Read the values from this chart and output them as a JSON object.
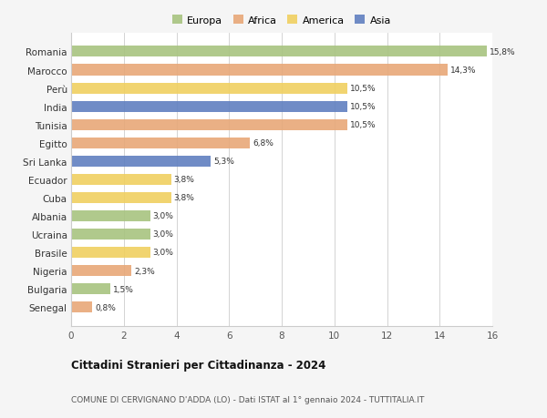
{
  "categories": [
    "Romania",
    "Marocco",
    "Perù",
    "India",
    "Tunisia",
    "Egitto",
    "Sri Lanka",
    "Ecuador",
    "Cuba",
    "Albania",
    "Ucraina",
    "Brasile",
    "Nigeria",
    "Bulgaria",
    "Senegal"
  ],
  "values": [
    15.8,
    14.3,
    10.5,
    10.5,
    10.5,
    6.8,
    5.3,
    3.8,
    3.8,
    3.0,
    3.0,
    3.0,
    2.3,
    1.5,
    0.8
  ],
  "labels": [
    "15,8%",
    "14,3%",
    "10,5%",
    "10,5%",
    "10,5%",
    "6,8%",
    "5,3%",
    "3,8%",
    "3,8%",
    "3,0%",
    "3,0%",
    "3,0%",
    "2,3%",
    "1,5%",
    "0,8%"
  ],
  "continents": [
    "Europa",
    "Africa",
    "America",
    "Asia",
    "Africa",
    "Africa",
    "Asia",
    "America",
    "America",
    "Europa",
    "Europa",
    "America",
    "Africa",
    "Europa",
    "Africa"
  ],
  "colors": {
    "Europa": "#a8c480",
    "Africa": "#e8a878",
    "America": "#f0d060",
    "Asia": "#6080c0"
  },
  "legend_order": [
    "Europa",
    "Africa",
    "America",
    "Asia"
  ],
  "title1": "Cittadini Stranieri per Cittadinanza - 2024",
  "title2": "COMUNE DI CERVIGNANO D'ADDA (LO) - Dati ISTAT al 1° gennaio 2024 - TUTTITALIA.IT",
  "xlim": [
    0,
    16
  ],
  "xticks": [
    0,
    2,
    4,
    6,
    8,
    10,
    12,
    14,
    16
  ],
  "background_color": "#f5f5f5",
  "bar_background": "#ffffff"
}
